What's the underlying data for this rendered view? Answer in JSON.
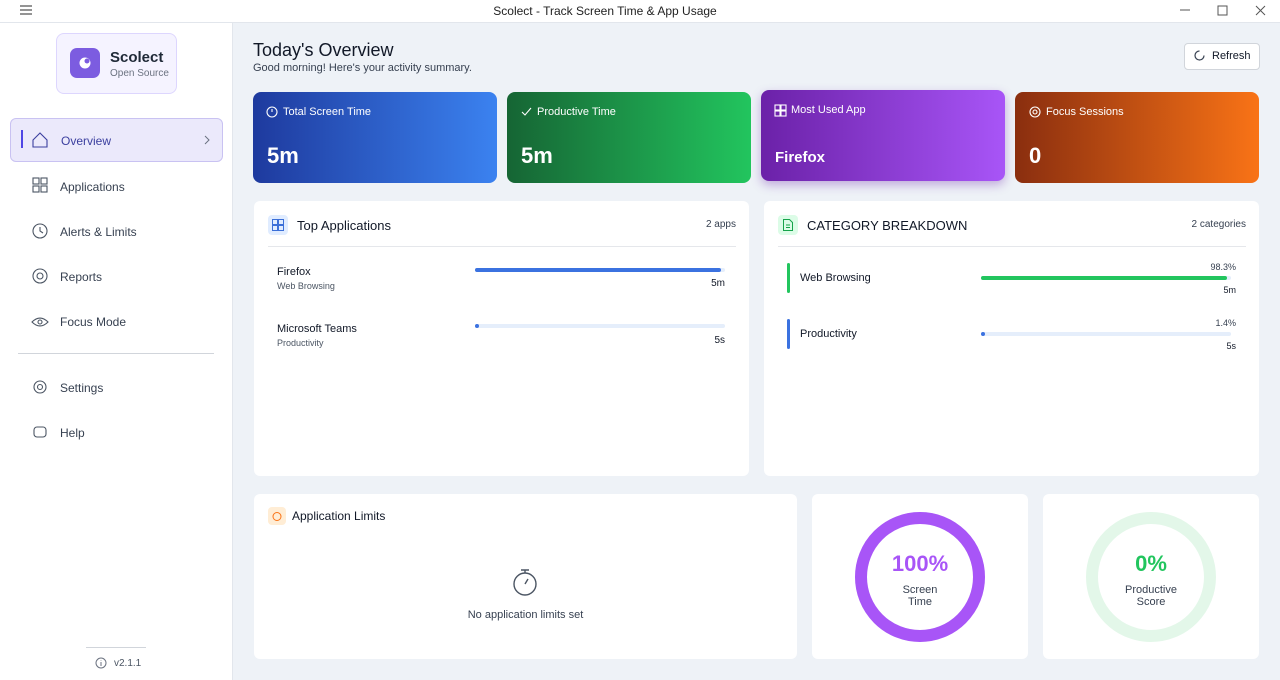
{
  "window": {
    "title": "Scolect - Track Screen Time & App Usage"
  },
  "sidebar": {
    "app_name": "Scolect",
    "app_subtitle": "Open Source",
    "nav": [
      "Overview",
      "Applications",
      "Alerts & Limits",
      "Reports",
      "Focus Mode"
    ],
    "nav_bottom": [
      "Settings",
      "Help"
    ],
    "version": "v2.1.1"
  },
  "header": {
    "title": "Today's Overview",
    "subtitle": "Good morning! Here's your activity summary.",
    "refresh": "Refresh"
  },
  "stats": [
    {
      "label": "Total Screen Time",
      "value": "5m"
    },
    {
      "label": "Productive Time",
      "value": "5m"
    },
    {
      "label": "Most Used App",
      "value": "Firefox"
    },
    {
      "label": "Focus Sessions",
      "value": "0"
    }
  ],
  "top_applications": {
    "title": "Top Applications",
    "count": "2 apps",
    "items": [
      {
        "name": "Firefox",
        "category": "Web Browsing",
        "time": "5m"
      },
      {
        "name": "Microsoft Teams",
        "category": "Productivity",
        "time": "5s"
      }
    ]
  },
  "category_breakdown": {
    "title": "CATEGORY BREAKDOWN",
    "count": "2 categories",
    "items": [
      {
        "name": "Web Browsing",
        "percent": "98.3%",
        "time": "5m"
      },
      {
        "name": "Productivity",
        "percent": "1.4%",
        "time": "5s"
      }
    ]
  },
  "application_limits": {
    "title": "Application Limits",
    "empty": "No application limits set"
  },
  "rings": [
    {
      "value": "100%",
      "label": "Screen Time"
    },
    {
      "value": "0%",
      "label": "Productive Score"
    }
  ]
}
